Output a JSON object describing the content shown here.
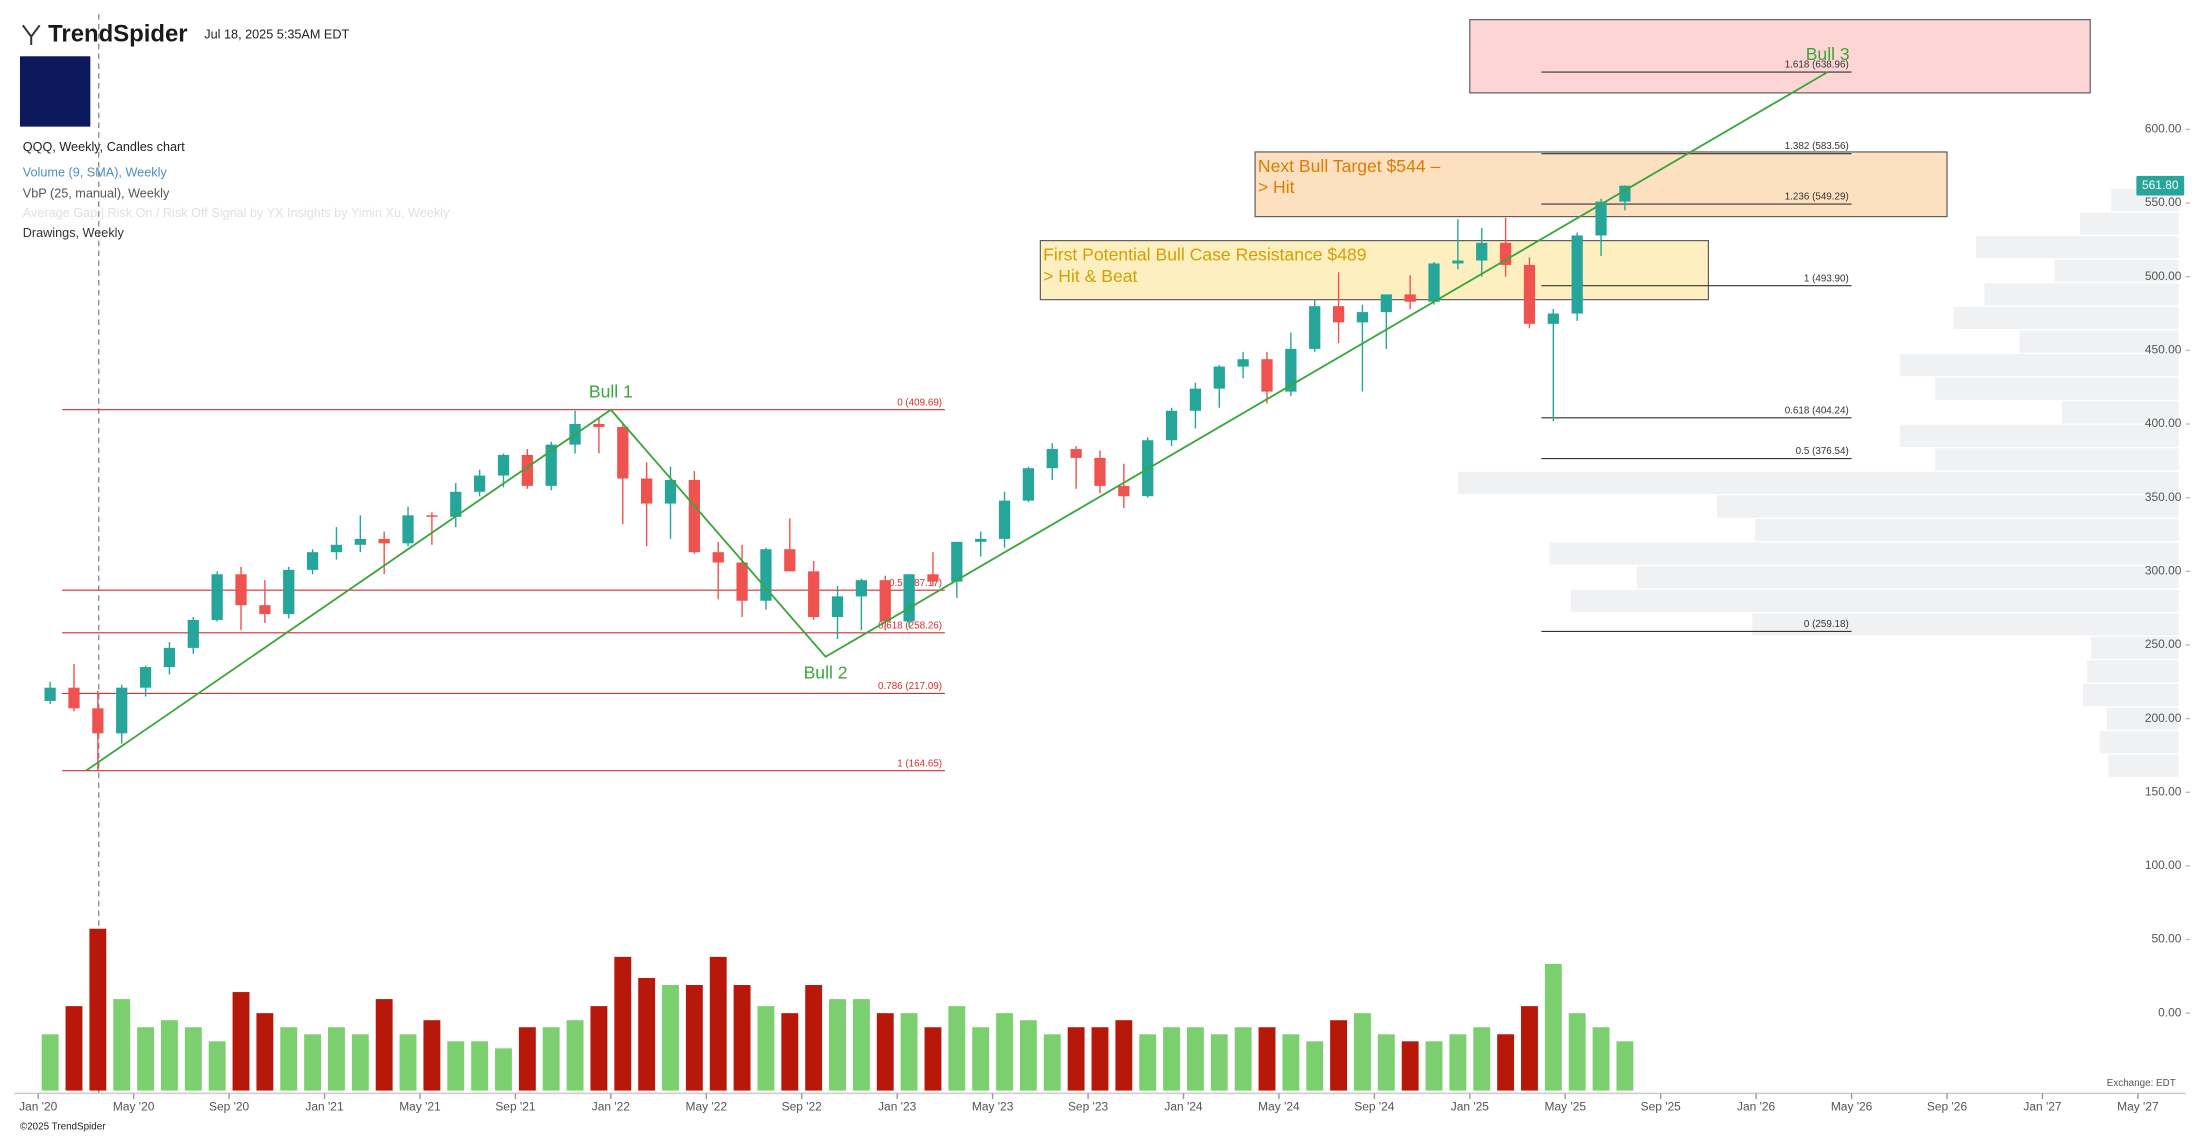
{
  "header": {
    "brand": "TrendSpider",
    "timestamp": "Jul 18, 2025 5:35AM EDT"
  },
  "legend": [
    "QQQ, Weekly, Candles chart",
    "Volume (9, SMA), Weekly",
    "VbP (25, manual), Weekly",
    "Average Gap | Risk On / Risk Off Signal by YX Insights by Yimin Xu, Weekly",
    "Drawings, Weekly"
  ],
  "footer": {
    "copyright": "©2025 TrendSpider",
    "exchange": "Exchange: EDT"
  },
  "chart_data": {
    "type": "candlestick",
    "x": [
      "2020-01",
      "2020-02",
      "2020-03",
      "2020-04",
      "2020-05",
      "2020-06",
      "2020-07",
      "2020-08",
      "2020-09",
      "2020-10",
      "2020-11",
      "2020-12",
      "2021-01",
      "2021-02",
      "2021-03",
      "2021-04",
      "2021-05",
      "2021-06",
      "2021-07",
      "2021-08",
      "2021-09",
      "2021-10",
      "2021-11",
      "2021-12",
      "2022-01",
      "2022-02",
      "2022-03",
      "2022-04",
      "2022-05",
      "2022-06",
      "2022-07",
      "2022-08",
      "2022-09",
      "2022-10",
      "2022-11",
      "2022-12",
      "2023-01",
      "2023-02",
      "2023-03",
      "2023-04",
      "2023-05",
      "2023-06",
      "2023-07",
      "2023-08",
      "2023-09",
      "2023-10",
      "2023-11",
      "2023-12",
      "2024-01",
      "2024-02",
      "2024-03",
      "2024-04",
      "2024-05",
      "2024-06",
      "2024-07",
      "2024-08",
      "2024-09",
      "2024-10",
      "2024-11",
      "2024-12",
      "2025-01",
      "2025-02",
      "2025-03",
      "2025-04",
      "2025-05",
      "2025-06",
      "2025-07"
    ],
    "open": [
      212,
      221,
      207,
      190,
      221,
      235,
      248,
      267,
      298,
      277,
      271,
      301,
      313,
      318,
      322,
      319,
      338,
      337,
      354,
      365,
      379,
      358,
      386,
      400,
      398,
      363,
      346,
      362,
      313,
      306,
      280,
      315,
      300,
      269,
      283,
      294,
      266,
      298,
      293,
      320,
      322,
      348,
      370,
      383,
      377,
      358,
      351,
      389,
      409,
      424,
      439,
      444,
      422,
      451,
      480,
      469,
      476,
      488,
      483,
      509,
      511,
      523,
      508,
      468,
      475,
      528,
      551
    ],
    "high": [
      225,
      237,
      219,
      223,
      236,
      252,
      269,
      300,
      303,
      294,
      303,
      315,
      330,
      338,
      327,
      344,
      340,
      360,
      369,
      380,
      383,
      388,
      409,
      404,
      401,
      374,
      371,
      368,
      320,
      318,
      316,
      336,
      307,
      290,
      295,
      297,
      298,
      313,
      320,
      327,
      354,
      371,
      387,
      385,
      382,
      373,
      391,
      411,
      428,
      440,
      449,
      449,
      462,
      484,
      503,
      481,
      488,
      501,
      510,
      539,
      533,
      540,
      513,
      478,
      530,
      553,
      562
    ],
    "low": [
      210,
      205,
      165,
      183,
      215,
      230,
      244,
      266,
      260,
      265,
      268,
      298,
      308,
      313,
      298,
      317,
      318,
      330,
      351,
      357,
      356,
      355,
      380,
      380,
      332,
      317,
      322,
      312,
      281,
      269,
      274,
      300,
      267,
      254,
      260,
      260,
      262,
      290,
      282,
      310,
      316,
      347,
      362,
      356,
      353,
      343,
      350,
      385,
      397,
      411,
      431,
      414,
      419,
      449,
      455,
      422,
      451,
      478,
      481,
      505,
      500,
      500,
      465,
      402,
      470,
      514,
      545
    ],
    "close": [
      221,
      207,
      190,
      221,
      235,
      248,
      267,
      298,
      277,
      271,
      301,
      313,
      318,
      322,
      319,
      338,
      337,
      354,
      365,
      379,
      358,
      386,
      400,
      398,
      363,
      346,
      362,
      313,
      306,
      280,
      315,
      300,
      269,
      283,
      294,
      266,
      298,
      293,
      320,
      322,
      348,
      370,
      383,
      377,
      358,
      351,
      389,
      409,
      424,
      439,
      444,
      422,
      451,
      480,
      469,
      476,
      488,
      483,
      509,
      511,
      523,
      508,
      468,
      475,
      528,
      551,
      561.8
    ],
    "volume": [
      800,
      1200,
      2300,
      1300,
      900,
      1000,
      900,
      700,
      1400,
      1100,
      900,
      800,
      900,
      800,
      1300,
      800,
      1000,
      700,
      700,
      600,
      900,
      900,
      1000,
      1200,
      1900,
      1600,
      1500,
      1500,
      1900,
      1500,
      1200,
      1100,
      1500,
      1300,
      1300,
      1100,
      1100,
      900,
      1200,
      900,
      1100,
      1000,
      800,
      900,
      900,
      1000,
      800,
      900,
      900,
      800,
      900,
      900,
      800,
      700,
      1000,
      1100,
      800,
      700,
      700,
      800,
      900,
      800,
      1200,
      1800,
      1100,
      900,
      700
    ],
    "up_color": "#26a69a",
    "down_color": "#ef5350",
    "volume_up_color": "#7ccf6f",
    "volume_down_color": "#b8180a",
    "xlim": [
      "2019-12",
      "2027-07"
    ],
    "xticks": [
      {
        "value": "2020-01",
        "label": "Jan '20"
      },
      {
        "value": "2020-05",
        "label": "May '20"
      },
      {
        "value": "2020-09",
        "label": "Sep '20"
      },
      {
        "value": "2021-01",
        "label": "Jan '21"
      },
      {
        "value": "2021-05",
        "label": "May '21"
      },
      {
        "value": "2021-09",
        "label": "Sep '21"
      },
      {
        "value": "2022-01",
        "label": "Jan '22"
      },
      {
        "value": "2022-05",
        "label": "May '22"
      },
      {
        "value": "2022-09",
        "label": "Sep '22"
      },
      {
        "value": "2023-01",
        "label": "Jan '23"
      },
      {
        "value": "2023-05",
        "label": "May '23"
      },
      {
        "value": "2023-09",
        "label": "Sep '23"
      },
      {
        "value": "2024-01",
        "label": "Jan '24"
      },
      {
        "value": "2024-05",
        "label": "May '24"
      },
      {
        "value": "2024-09",
        "label": "Sep '24"
      },
      {
        "value": "2025-01",
        "label": "Jan '25"
      },
      {
        "value": "2025-05",
        "label": "May '25"
      },
      {
        "value": "2025-09",
        "label": "Sep '25"
      },
      {
        "value": "2026-01",
        "label": "Jan '26"
      },
      {
        "value": "2026-05",
        "label": "May '26"
      },
      {
        "value": "2026-09",
        "label": "Sep '26"
      },
      {
        "value": "2027-01",
        "label": "Jan '27"
      },
      {
        "value": "2027-05",
        "label": "May '27"
      }
    ],
    "ylim": [
      -52.5,
      678.3
    ],
    "yticks": [
      {
        "value": 0,
        "label": "0.00"
      },
      {
        "value": 50,
        "label": "50.00"
      },
      {
        "value": 100,
        "label": "100.00"
      },
      {
        "value": 150,
        "label": "150.00"
      },
      {
        "value": 200,
        "label": "200.00"
      },
      {
        "value": 250,
        "label": "250.00"
      },
      {
        "value": 300,
        "label": "300.00"
      },
      {
        "value": 350,
        "label": "350.00"
      },
      {
        "value": 400,
        "label": "400.00"
      },
      {
        "value": 450,
        "label": "450.00"
      },
      {
        "value": 500,
        "label": "500.00"
      },
      {
        "value": 550,
        "label": "550.00"
      },
      {
        "value": 600,
        "label": "600.00"
      }
    ],
    "last_price": {
      "value": 561.8,
      "label": "561.80"
    },
    "volume_by_price": {
      "bins": [
        160,
        176,
        192,
        208,
        224,
        240,
        256,
        272,
        288,
        304,
        320,
        336,
        352,
        368,
        384,
        400,
        416,
        432,
        448,
        464,
        480,
        496,
        512,
        528,
        544,
        560
      ],
      "values": [
        50,
        56,
        51,
        68,
        65,
        62,
        303,
        432,
        385,
        447,
        301,
        328,
        512,
        173,
        198,
        83,
        173,
        198,
        113,
        160,
        138,
        88,
        144,
        70,
        48
      ],
      "color": "#eceff1"
    },
    "fib_left": {
      "from": "2020-02",
      "to": "2023-03",
      "color": "#d32f2f",
      "levels": [
        {
          "value": 409.69,
          "label": "0 (409.69)"
        },
        {
          "value": 287.17,
          "label": "0.5 (287.17)"
        },
        {
          "value": 258.26,
          "label": "0.618 (258.26)"
        },
        {
          "value": 217.09,
          "label": "0.786 (217.09)"
        },
        {
          "value": 164.65,
          "label": "1 (164.65)"
        }
      ]
    },
    "fib_right": {
      "from": "2025-04",
      "to": "2026-05",
      "color": "#333333",
      "levels": [
        {
          "value": 638.96,
          "label": "1.618 (638.96)"
        },
        {
          "value": 583.56,
          "label": "1.382 (583.56)"
        },
        {
          "value": 549.29,
          "label": "1.236 (549.29)"
        },
        {
          "value": 493.9,
          "label": "1 (493.90)"
        },
        {
          "value": 404.24,
          "label": "0.618 (404.24)"
        },
        {
          "value": 376.54,
          "label": "0.5 (376.54)"
        },
        {
          "value": 259.18,
          "label": "0 (259.18)"
        }
      ]
    },
    "swing_line": {
      "color": "#3aa63a",
      "points": [
        {
          "x": "2020-03",
          "y": 164.65
        },
        {
          "x": "2022-01",
          "y": 409.69,
          "label": "Bull 1"
        },
        {
          "x": "2022-10",
          "y": 242,
          "label": "Bull 2"
        },
        {
          "x": "2026-04",
          "y": 638.96,
          "label": "Bull 3"
        }
      ]
    },
    "zones": [
      {
        "from": "2025-01",
        "to": "2027-03",
        "top": 674.5,
        "bottom": 624.8,
        "fill": "#fdd5d5"
      },
      {
        "from": "2024-04",
        "to": "2026-09",
        "top": 584.7,
        "bottom": 540.8,
        "fill": "#fde0c0",
        "text": [
          "Next Bull Target $544 –",
          "> Hit"
        ],
        "text_color": "#e07b00"
      },
      {
        "from": "2023-07",
        "to": "2025-11",
        "top": 524.5,
        "bottom": 484.4,
        "fill": "#fdefc0",
        "text": [
          "First Potential Bull Case Resistance $489",
          "> Hit & Beat"
        ],
        "text_color": "#d4a000"
      }
    ]
  }
}
